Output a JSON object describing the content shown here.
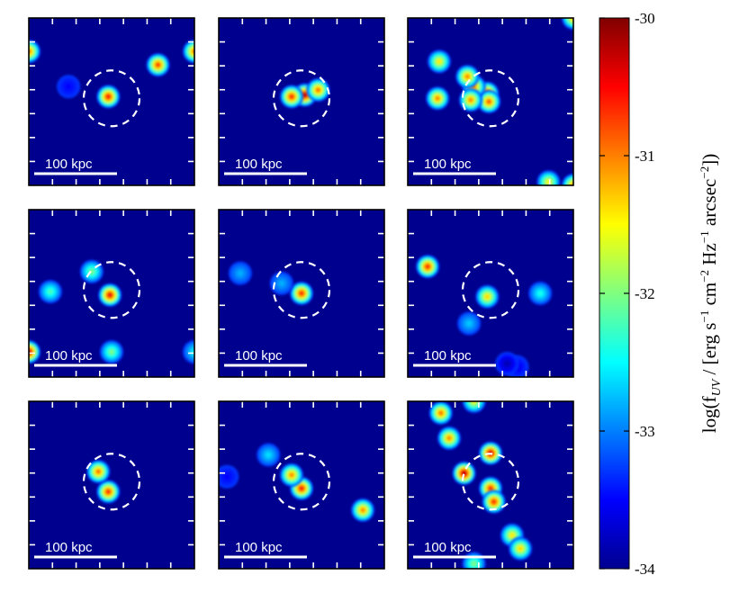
{
  "chart_data": {
    "type": "heatmap",
    "grid": "3x3 panels",
    "scalebar_label": "100 kpc",
    "colorbar": {
      "min": -34,
      "max": -30,
      "ticks": [
        -30,
        -31,
        -32,
        -33,
        -34
      ],
      "tick_labels": [
        "-30",
        "-31",
        "-32",
        "-33",
        "-34"
      ],
      "label": "log(f_UV / [erg s^-1 cm^-2 Hz^-1 arcsec^-2])",
      "colormap": "jet"
    },
    "background_value": -34,
    "panels": [
      {
        "sources": [
          {
            "x": 0.48,
            "y": 0.47,
            "v": -30.5
          },
          {
            "x": 0.78,
            "y": 0.28,
            "v": -30.7
          },
          {
            "x": 0.0,
            "y": 0.2,
            "v": -30.9
          },
          {
            "x": 1.0,
            "y": 0.2,
            "v": -30.9
          },
          {
            "x": 0.24,
            "y": 0.41,
            "v": -33.5
          }
        ]
      },
      {
        "sources": [
          {
            "x": 0.52,
            "y": 0.46,
            "v": -30.2
          },
          {
            "x": 0.44,
            "y": 0.47,
            "v": -30.6
          },
          {
            "x": 0.6,
            "y": 0.43,
            "v": -30.9
          }
        ]
      },
      {
        "sources": [
          {
            "x": 0.48,
            "y": 0.45,
            "v": -30.6
          },
          {
            "x": 0.49,
            "y": 0.5,
            "v": -30.8
          },
          {
            "x": 0.4,
            "y": 0.41,
            "v": -31.0
          },
          {
            "x": 0.36,
            "y": 0.35,
            "v": -31.0
          },
          {
            "x": 0.19,
            "y": 0.26,
            "v": -31.4
          },
          {
            "x": 0.18,
            "y": 0.48,
            "v": -31.0
          },
          {
            "x": 0.38,
            "y": 0.49,
            "v": -31.0
          },
          {
            "x": 0.85,
            "y": 0.98,
            "v": -31.5
          },
          {
            "x": 1.0,
            "y": 1.0,
            "v": -31.0
          },
          {
            "x": 1.0,
            "y": 0.0,
            "v": -31.2
          }
        ]
      },
      {
        "sources": [
          {
            "x": 0.49,
            "y": 0.51,
            "v": -30.4
          },
          {
            "x": 0.38,
            "y": 0.37,
            "v": -32.0
          },
          {
            "x": 0.13,
            "y": 0.49,
            "v": -32.2
          },
          {
            "x": 0.0,
            "y": 0.85,
            "v": -30.2
          },
          {
            "x": 0.5,
            "y": 0.85,
            "v": -32.0
          },
          {
            "x": 1.0,
            "y": 0.85,
            "v": -32.5
          }
        ]
      },
      {
        "sources": [
          {
            "x": 0.5,
            "y": 0.5,
            "v": -30.6
          },
          {
            "x": 0.38,
            "y": 0.44,
            "v": -32.8
          },
          {
            "x": 0.13,
            "y": 0.38,
            "v": -32.8
          }
        ]
      },
      {
        "sources": [
          {
            "x": 0.48,
            "y": 0.52,
            "v": -31.3
          },
          {
            "x": 0.12,
            "y": 0.34,
            "v": -30.6
          },
          {
            "x": 0.8,
            "y": 0.5,
            "v": -32.4
          },
          {
            "x": 0.37,
            "y": 0.68,
            "v": -32.7
          },
          {
            "x": 0.66,
            "y": 0.94,
            "v": -33.6
          },
          {
            "x": 0.6,
            "y": 0.92,
            "v": -33.8
          }
        ]
      },
      {
        "sources": [
          {
            "x": 0.48,
            "y": 0.54,
            "v": -30.6
          },
          {
            "x": 0.42,
            "y": 0.42,
            "v": -30.9
          }
        ]
      },
      {
        "sources": [
          {
            "x": 0.5,
            "y": 0.52,
            "v": -30.5
          },
          {
            "x": 0.44,
            "y": 0.44,
            "v": -31.0
          },
          {
            "x": 0.3,
            "y": 0.32,
            "v": -32.6
          },
          {
            "x": 0.87,
            "y": 0.65,
            "v": -31.0
          },
          {
            "x": 0.05,
            "y": 0.45,
            "v": -33.5
          }
        ]
      },
      {
        "sources": [
          {
            "x": 0.2,
            "y": 0.07,
            "v": -30.9
          },
          {
            "x": 0.25,
            "y": 0.22,
            "v": -31.0
          },
          {
            "x": 0.4,
            "y": 0.0,
            "v": -31.5
          },
          {
            "x": 0.5,
            "y": 0.31,
            "v": -30.2
          },
          {
            "x": 0.34,
            "y": 0.43,
            "v": -30.1
          },
          {
            "x": 0.5,
            "y": 0.52,
            "v": -30.6
          },
          {
            "x": 0.52,
            "y": 0.6,
            "v": -30.6
          },
          {
            "x": 0.63,
            "y": 0.8,
            "v": -31.4
          },
          {
            "x": 0.68,
            "y": 0.88,
            "v": -31.3
          },
          {
            "x": 0.4,
            "y": 0.97,
            "v": -32.0
          }
        ]
      }
    ]
  }
}
